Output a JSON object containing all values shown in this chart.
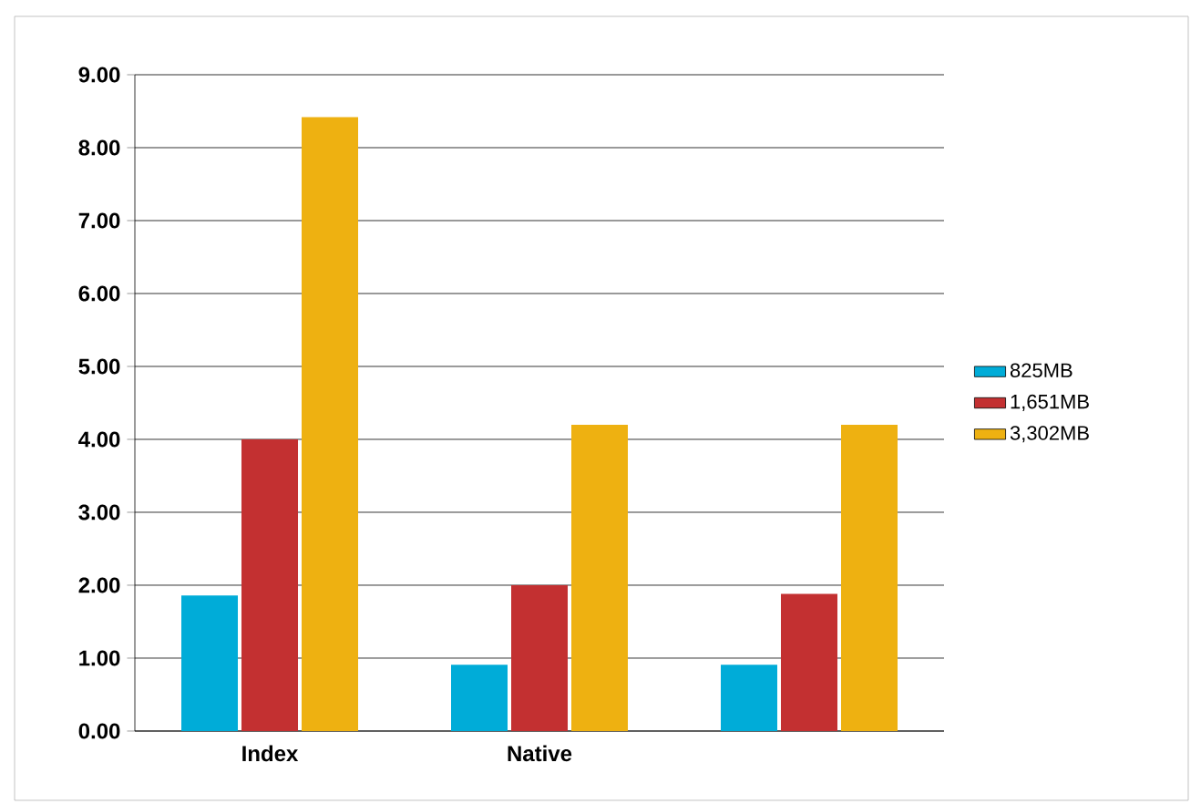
{
  "chart_data": {
    "type": "bar",
    "categories": [
      "Index",
      "Native",
      null
    ],
    "series": [
      {
        "name": "825MB",
        "color": "#00acd8",
        "values": [
          1.86,
          0.91,
          0.91
        ]
      },
      {
        "name": "1,651MB",
        "color": "#c33031",
        "values": [
          4.0,
          2.0,
          1.88
        ]
      },
      {
        "name": "3,302MB",
        "color": "#eeb111",
        "values": [
          8.42,
          4.2,
          4.2
        ]
      }
    ],
    "ylim": [
      0,
      9
    ],
    "yticks": [
      {
        "value": 0,
        "label": "0.00"
      },
      {
        "value": 1,
        "label": "1.00"
      },
      {
        "value": 2,
        "label": "2.00"
      },
      {
        "value": 3,
        "label": "3.00"
      },
      {
        "value": 4,
        "label": "4.00"
      },
      {
        "value": 5,
        "label": "5.00"
      },
      {
        "value": 6,
        "label": "6.00"
      },
      {
        "value": 7,
        "label": "7.00"
      },
      {
        "value": 8,
        "label": "8.00"
      },
      {
        "value": 9,
        "label": "9.00"
      }
    ],
    "grid": "y",
    "legend": "right"
  }
}
